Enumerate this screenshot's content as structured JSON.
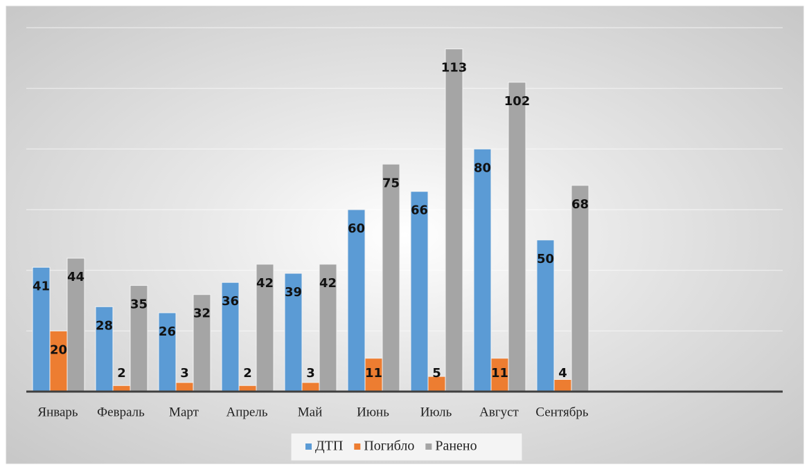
{
  "chart_data": {
    "type": "bar",
    "categories": [
      "Январь",
      "Февраль",
      "Март",
      "Апрель",
      "Май",
      "Июнь",
      "Июль",
      "Август",
      "Сентябрь",
      null,
      null,
      null
    ],
    "series": [
      {
        "name": "ДТП",
        "color": "#5b9bd5",
        "values": [
          41,
          28,
          26,
          36,
          39,
          60,
          66,
          80,
          50,
          null,
          null,
          null
        ]
      },
      {
        "name": "Погибло",
        "color": "#ed7d31",
        "values": [
          20,
          2,
          3,
          2,
          3,
          11,
          5,
          11,
          4,
          null,
          null,
          null
        ]
      },
      {
        "name": "Ранено",
        "color": "#a5a5a5",
        "values": [
          44,
          35,
          32,
          42,
          42,
          75,
          113,
          102,
          68,
          null,
          null,
          null
        ]
      }
    ],
    "ylim": [
      0,
      120
    ],
    "yticks": [
      0,
      20,
      40,
      60,
      80,
      100,
      120
    ],
    "grid": true,
    "legend": "bottom"
  }
}
